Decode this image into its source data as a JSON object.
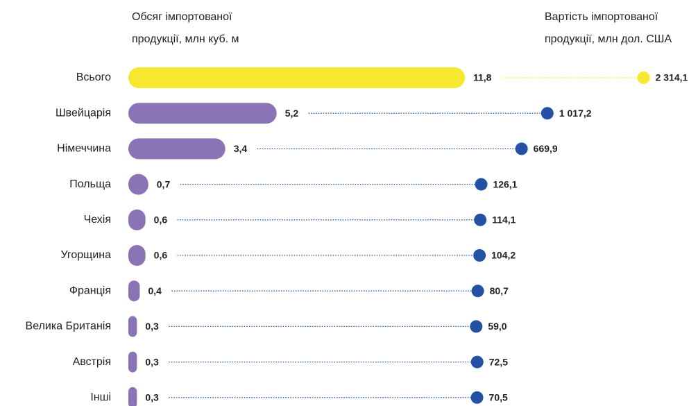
{
  "chart_data": {
    "type": "bar-dot",
    "volume_header": [
      "Обсяг імпортованої",
      "продукції, млн куб. м"
    ],
    "value_header": [
      "Вартість імпортованої",
      "продукції, млн дол. США"
    ],
    "categories": [
      "Всього",
      "Швейцарія",
      "Німеччина",
      "Польща",
      "Чехія",
      "Угорщина",
      "Франція",
      "Велика Британія",
      "Австрія",
      "Інші"
    ],
    "series": [
      {
        "values": [
          11.8,
          5.2,
          3.4,
          0.7,
          0.6,
          0.6,
          0.4,
          0.3,
          0.3,
          0.3
        ],
        "value_labels": [
          "11,8",
          "5,2",
          "3,4",
          "0,7",
          "0,6",
          "0,6",
          "0,4",
          "0,3",
          "0,3",
          "0,3"
        ],
        "colors": [
          "#f6e731",
          "#8a74b6",
          "#8a74b6",
          "#8a74b6",
          "#8a74b6",
          "#8a74b6",
          "#8a74b6",
          "#8a74b6",
          "#8a74b6",
          "#8a74b6"
        ]
      },
      {
        "values": [
          2314.1,
          1017.2,
          669.9,
          126.1,
          114.1,
          104.2,
          80.7,
          59.0,
          72.5,
          70.5
        ],
        "value_labels": [
          "2 314,1",
          "1 017,2",
          "669,9",
          "126,1",
          "114,1",
          "104,2",
          "80,7",
          "59,0",
          "72,5",
          "70,5"
        ],
        "colors": [
          "#f6e731",
          "#2352a4",
          "#2352a4",
          "#2352a4",
          "#2352a4",
          "#2352a4",
          "#2352a4",
          "#2352a4",
          "#2352a4",
          "#2352a4"
        ]
      }
    ]
  }
}
